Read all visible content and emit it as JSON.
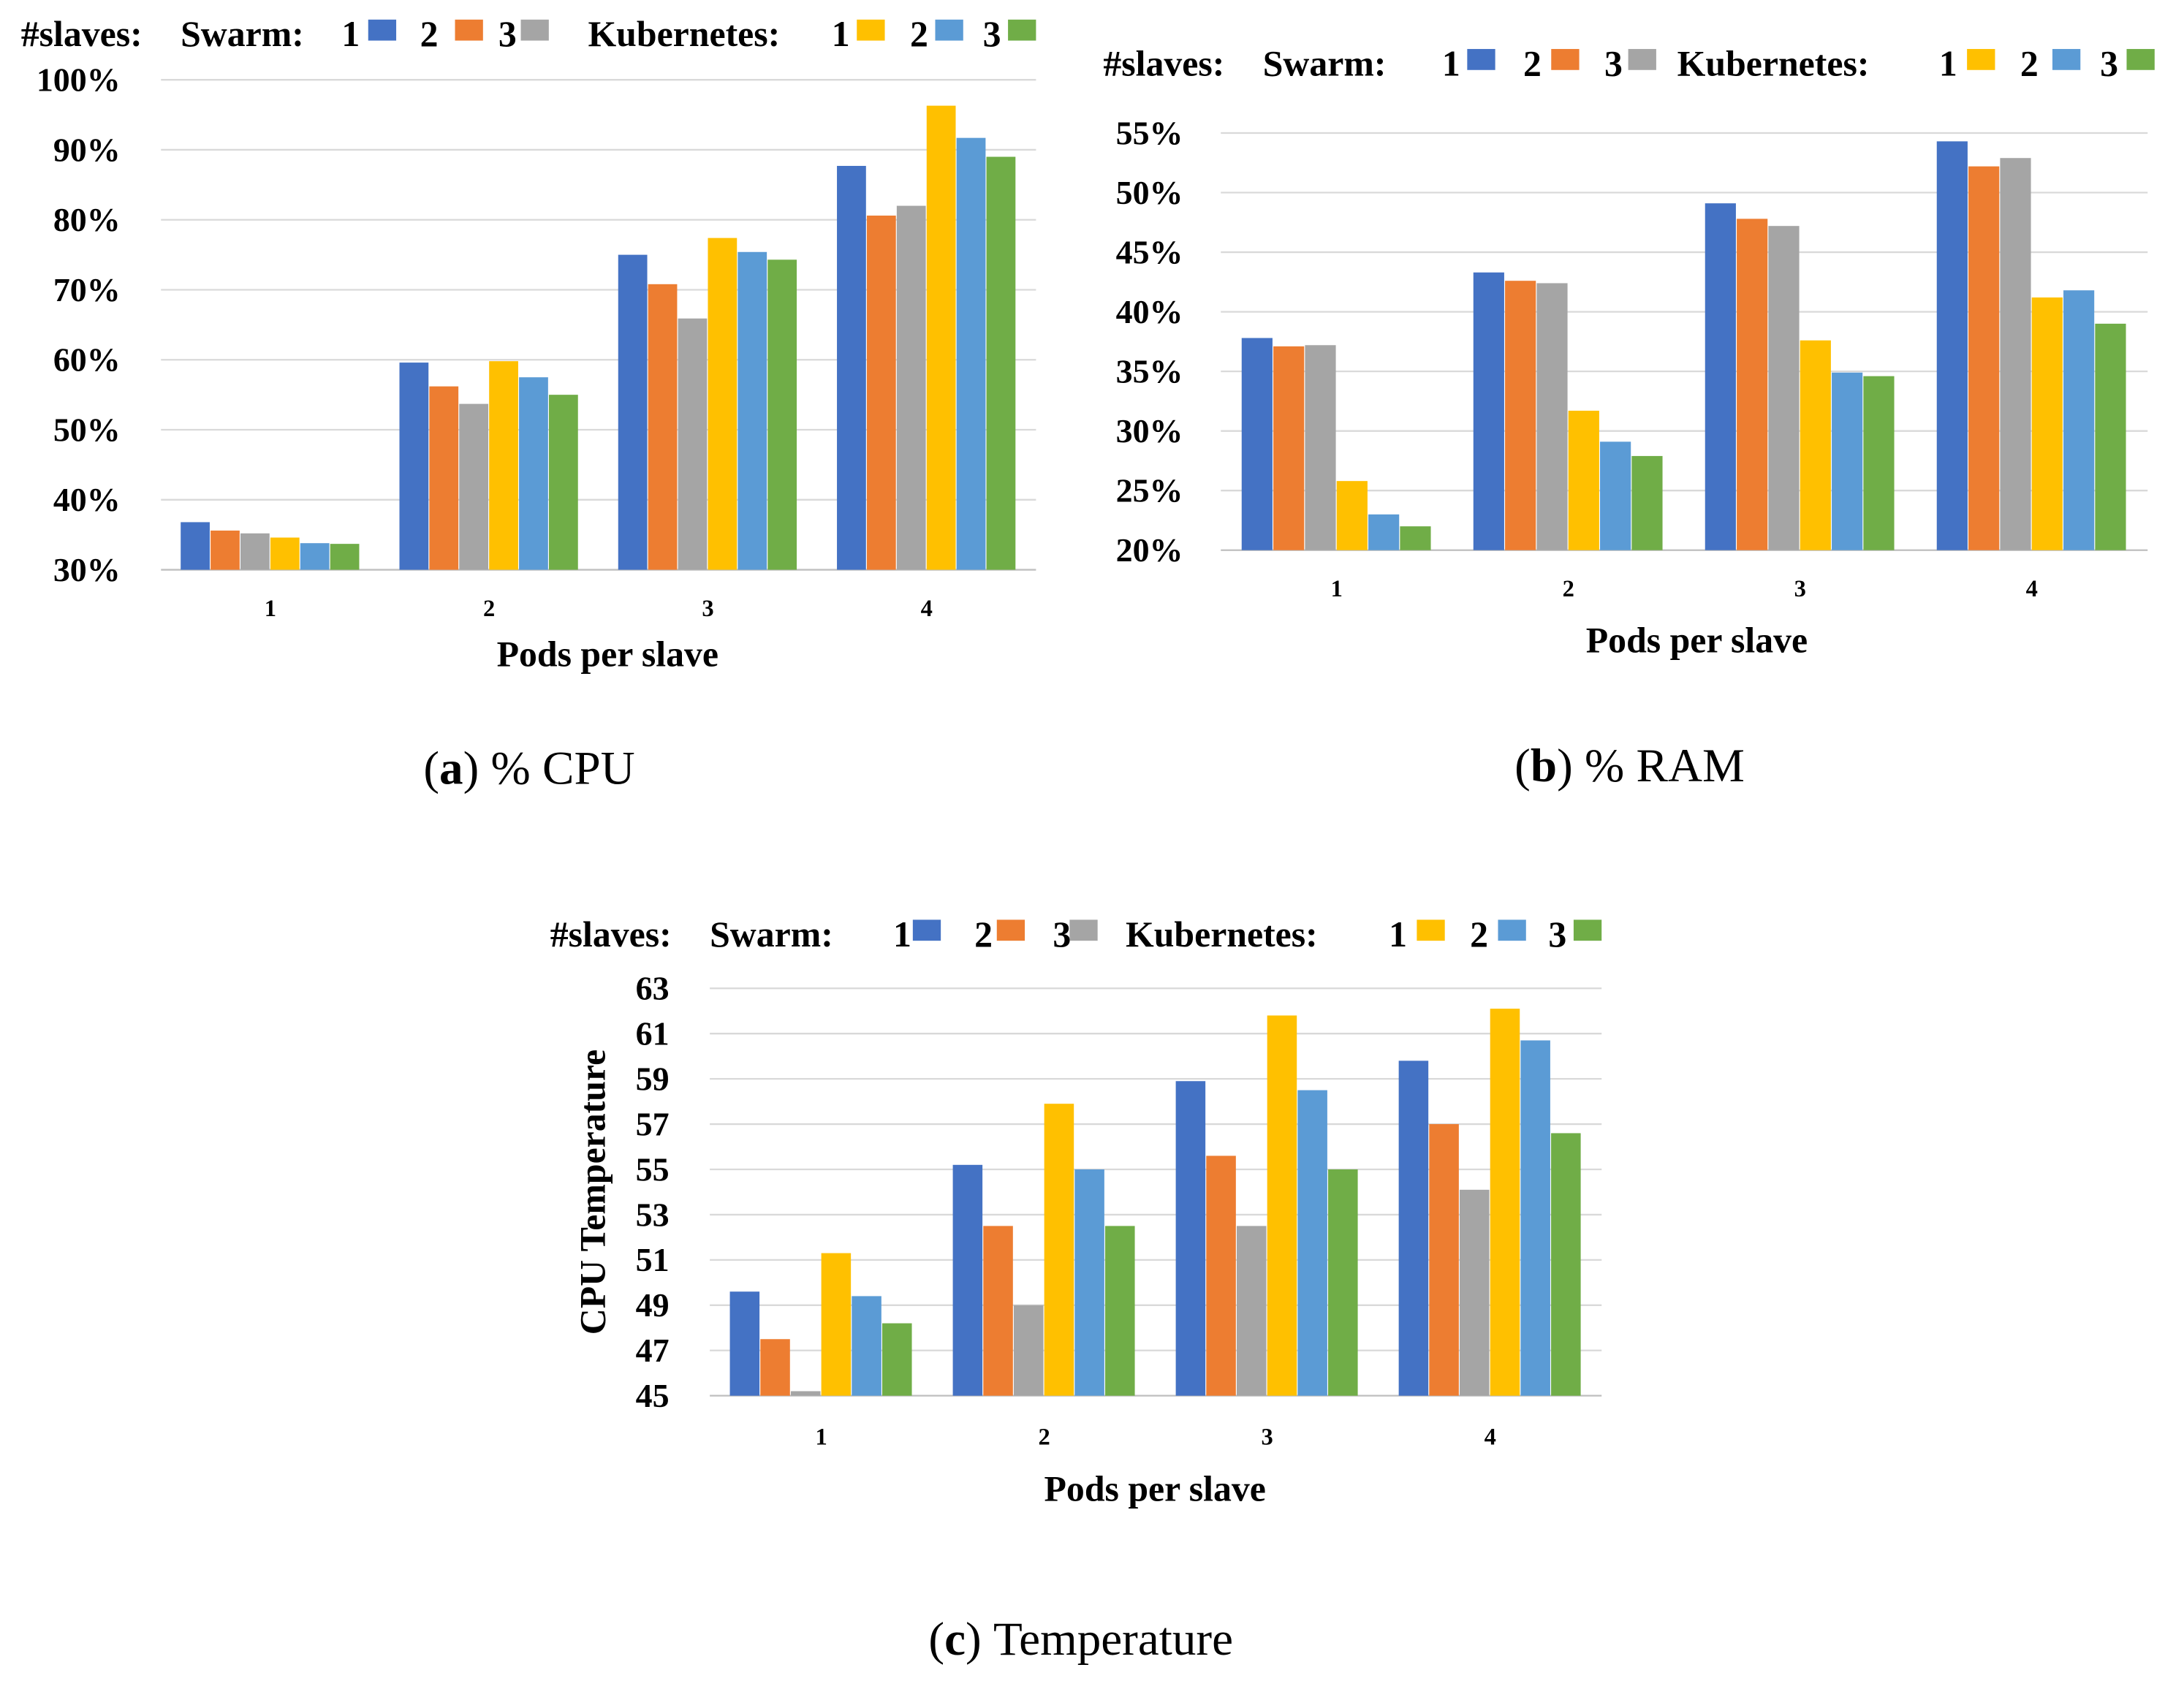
{
  "legend": {
    "prefix": "#slaves:",
    "groups": [
      {
        "name": "Swarm:",
        "items": [
          {
            "label": "1",
            "color": "#4472C4"
          },
          {
            "label": "2",
            "color": "#ED7D31"
          },
          {
            "label": "3",
            "color": "#A5A5A5"
          }
        ]
      },
      {
        "name": "Kubernetes:",
        "items": [
          {
            "label": "1",
            "color": "#FFC000"
          },
          {
            "label": "2",
            "color": "#5B9BD5"
          },
          {
            "label": "3",
            "color": "#70AD47"
          }
        ]
      }
    ]
  },
  "chart_data": [
    {
      "type": "bar",
      "caption_letter": "a",
      "caption_text": "% CPU",
      "xlabel": "Pods per slave",
      "ylabel": "",
      "categories": [
        "1",
        "2",
        "3",
        "4"
      ],
      "ylim": [
        30,
        100
      ],
      "yticks": [
        30,
        40,
        50,
        60,
        70,
        80,
        90,
        100
      ],
      "yunit": "%",
      "grid": true,
      "legend_position": "top",
      "series": [
        {
          "name": "Swarm 1",
          "color": "#4472C4",
          "values": [
            36.8,
            59.6,
            75.0,
            87.7
          ]
        },
        {
          "name": "Swarm 2",
          "color": "#ED7D31",
          "values": [
            35.6,
            56.2,
            70.8,
            80.6
          ]
        },
        {
          "name": "Swarm 3",
          "color": "#A5A5A5",
          "values": [
            35.2,
            53.7,
            65.9,
            82.0
          ]
        },
        {
          "name": "Kubernetes 1",
          "color": "#FFC000",
          "values": [
            34.6,
            59.8,
            77.4,
            96.3
          ]
        },
        {
          "name": "Kubernetes 2",
          "color": "#5B9BD5",
          "values": [
            33.8,
            57.5,
            75.4,
            91.7
          ]
        },
        {
          "name": "Kubernetes 3",
          "color": "#70AD47",
          "values": [
            33.7,
            55.0,
            74.3,
            89.0
          ]
        }
      ]
    },
    {
      "type": "bar",
      "caption_letter": "b",
      "caption_text": "% RAM",
      "xlabel": "Pods per slave",
      "ylabel": "",
      "categories": [
        "1",
        "2",
        "3",
        "4"
      ],
      "ylim": [
        20,
        55
      ],
      "yticks": [
        20,
        25,
        30,
        35,
        40,
        45,
        50,
        55
      ],
      "yunit": "%",
      "grid": true,
      "legend_position": "top",
      "series": [
        {
          "name": "Swarm 1",
          "color": "#4472C4",
          "values": [
            37.8,
            43.3,
            49.1,
            54.3
          ]
        },
        {
          "name": "Swarm 2",
          "color": "#ED7D31",
          "values": [
            37.1,
            42.6,
            47.8,
            52.2
          ]
        },
        {
          "name": "Swarm 3",
          "color": "#A5A5A5",
          "values": [
            37.2,
            42.4,
            47.2,
            52.9
          ]
        },
        {
          "name": "Kubernetes 1",
          "color": "#FFC000",
          "values": [
            25.8,
            31.7,
            37.6,
            41.2
          ]
        },
        {
          "name": "Kubernetes 2",
          "color": "#5B9BD5",
          "values": [
            23.0,
            29.1,
            34.9,
            41.8
          ]
        },
        {
          "name": "Kubernetes 3",
          "color": "#70AD47",
          "values": [
            22.0,
            27.9,
            34.6,
            39.0
          ]
        }
      ]
    },
    {
      "type": "bar",
      "caption_letter": "c",
      "caption_text": "Temperature",
      "xlabel": "Pods per slave",
      "ylabel": "CPU Temperature",
      "categories": [
        "1",
        "2",
        "3",
        "4"
      ],
      "ylim": [
        45,
        63
      ],
      "yticks": [
        45,
        47,
        49,
        51,
        53,
        55,
        57,
        59,
        61,
        63
      ],
      "yunit": "",
      "grid": true,
      "legend_position": "top",
      "series": [
        {
          "name": "Swarm 1",
          "color": "#4472C4",
          "values": [
            49.6,
            55.2,
            58.9,
            59.8
          ]
        },
        {
          "name": "Swarm 2",
          "color": "#ED7D31",
          "values": [
            47.5,
            52.5,
            55.6,
            57.0
          ]
        },
        {
          "name": "Swarm 3",
          "color": "#A5A5A5",
          "values": [
            45.2,
            49.0,
            52.5,
            54.1
          ]
        },
        {
          "name": "Kubernetes 1",
          "color": "#FFC000",
          "values": [
            51.3,
            57.9,
            61.8,
            62.1
          ]
        },
        {
          "name": "Kubernetes 2",
          "color": "#5B9BD5",
          "values": [
            49.4,
            55.0,
            58.5,
            60.7
          ]
        },
        {
          "name": "Kubernetes 3",
          "color": "#70AD47",
          "values": [
            48.2,
            52.5,
            55.0,
            56.6
          ]
        }
      ]
    }
  ]
}
